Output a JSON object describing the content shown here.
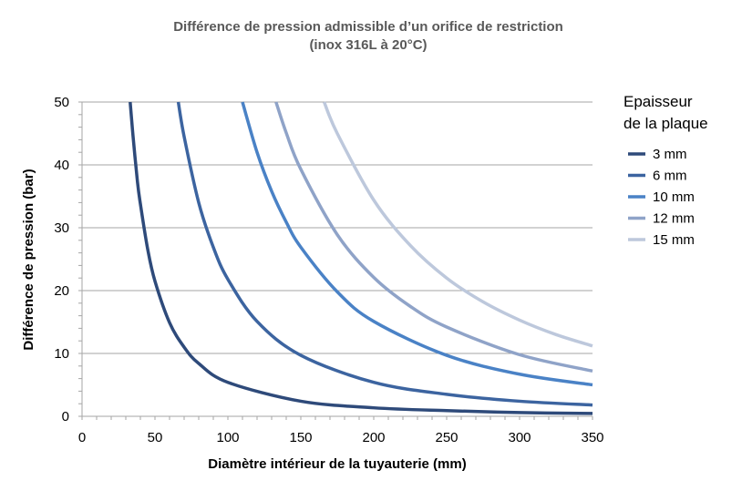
{
  "chart_data": {
    "type": "line",
    "title": "Différence de pression admissible d’un orifice de restriction",
    "subtitle": "(inox 316L à 20°C)",
    "xlabel": "Diamètre intérieur de la tuyauterie (mm)",
    "ylabel": "Différence de pression (bar)",
    "xlim": [
      0,
      350
    ],
    "ylim": [
      0,
      50
    ],
    "x_ticks": [
      "0",
      "50",
      "100",
      "150",
      "200",
      "250",
      "300",
      "350"
    ],
    "y_ticks": [
      "0",
      "10",
      "20",
      "30",
      "40",
      "50"
    ],
    "grid": "horizontal",
    "legend": {
      "title_lines": [
        "Epaisseur",
        "de la plaque"
      ],
      "placement": "right"
    },
    "series": [
      {
        "name": "3 mm",
        "color": "#2e4a7a",
        "x": [
          33,
          35,
          38,
          40,
          45,
          50,
          60,
          70,
          80,
          100,
          150,
          200,
          250,
          300,
          350
        ],
        "y": [
          50,
          44.5,
          37.3,
          33.8,
          26.6,
          21.5,
          14.9,
          11.0,
          8.4,
          5.4,
          2.4,
          1.35,
          0.9,
          0.6,
          0.45
        ]
      },
      {
        "name": "6 mm",
        "color": "#3c64a0",
        "x": [
          66,
          70,
          80,
          90,
          100,
          120,
          150,
          200,
          250,
          300,
          350
        ],
        "y": [
          50,
          44.5,
          34.0,
          26.9,
          21.8,
          15.1,
          9.7,
          5.4,
          3.5,
          2.4,
          1.8
        ]
      },
      {
        "name": "10 mm",
        "color": "#4a82c6",
        "x": [
          110,
          120,
          130,
          140,
          150,
          175,
          200,
          250,
          300,
          350
        ],
        "y": [
          50,
          42.0,
          35.8,
          30.9,
          26.9,
          19.8,
          15.1,
          9.7,
          6.7,
          5.0
        ]
      },
      {
        "name": "12 mm",
        "color": "#8fa3c8",
        "x": [
          133,
          140,
          150,
          175,
          200,
          225,
          250,
          300,
          350
        ],
        "y": [
          50,
          45.1,
          39.3,
          28.9,
          22.1,
          17.5,
          14.2,
          9.8,
          7.2
        ]
      },
      {
        "name": "15 mm",
        "color": "#bdc8dc",
        "x": [
          166,
          175,
          200,
          225,
          250,
          275,
          300,
          325,
          350
        ],
        "y": [
          50,
          45.0,
          34.4,
          27.2,
          22.0,
          18.2,
          15.3,
          13.0,
          11.2
        ]
      }
    ]
  }
}
